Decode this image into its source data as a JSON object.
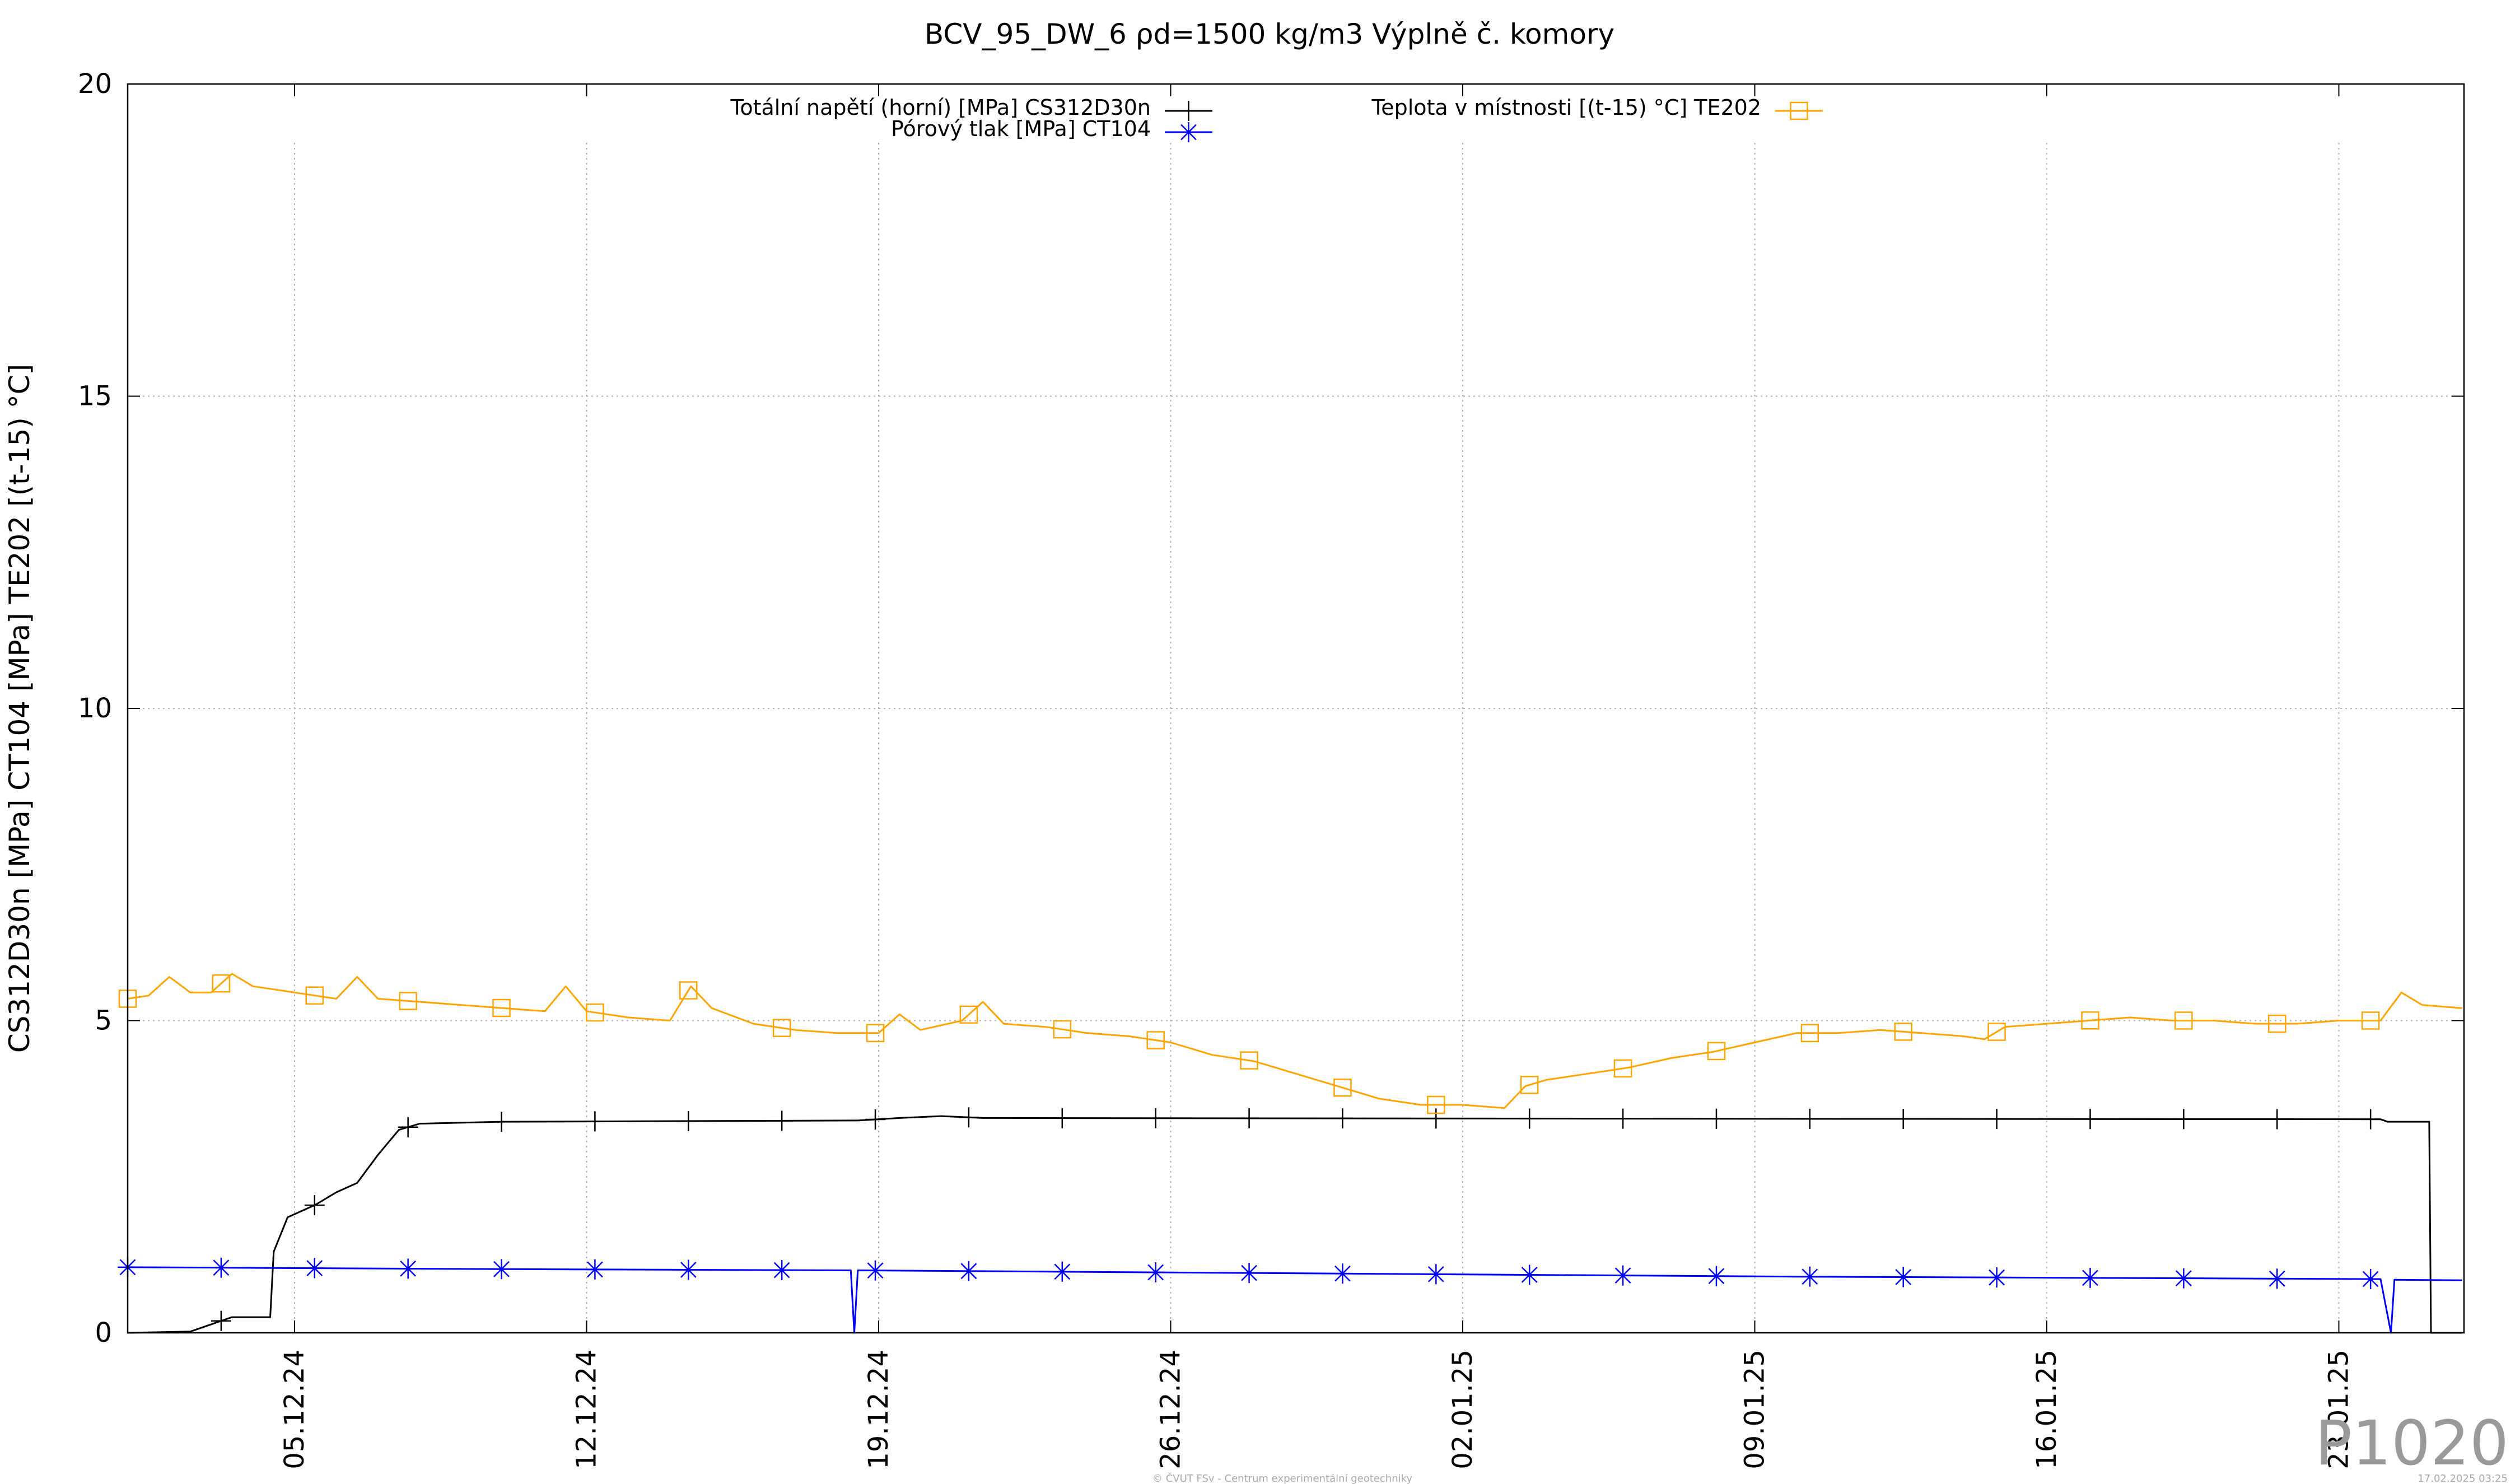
{
  "chart_data": {
    "type": "line",
    "title": "BCV_95_DW_6 ρd=1500 kg/m3 Výplně č. komory",
    "ylabel": "CS312D30n [MPa] CT104 [MPa] TE202 [(t-15) °C]",
    "xlabel": "",
    "ylim": [
      0,
      20
    ],
    "xlim": [
      "2024-12-01",
      "2025-01-25"
    ],
    "yticks": [
      "0",
      "5",
      "10",
      "15",
      "20"
    ],
    "xticks": [
      {
        "date": "2024-12-05",
        "label": "05.12.24"
      },
      {
        "date": "2024-12-12",
        "label": "12.12.24"
      },
      {
        "date": "2024-12-19",
        "label": "19.12.24"
      },
      {
        "date": "2024-12-26",
        "label": "26.12.24"
      },
      {
        "date": "2025-01-02",
        "label": "02.01.25"
      },
      {
        "date": "2025-01-09",
        "label": "09.01.25"
      },
      {
        "date": "2025-01-16",
        "label": "16.01.25"
      },
      {
        "date": "2025-01-23",
        "label": "23.01.25"
      }
    ],
    "grid": true,
    "legend_position": "top",
    "series": [
      {
        "name": "Totální napětí (horní) [MPa] CS312D30n",
        "color": "#000000",
        "marker": "plus",
        "points": [
          [
            "2024-12-01 00:00",
            0.0
          ],
          [
            "2024-12-02 12:00",
            0.02
          ],
          [
            "2024-12-03 12:00",
            0.25
          ],
          [
            "2024-12-04 10:00",
            0.25
          ],
          [
            "2024-12-04 12:00",
            1.3
          ],
          [
            "2024-12-04 20:00",
            1.85
          ],
          [
            "2024-12-05 12:00",
            2.05
          ],
          [
            "2024-12-06 00:00",
            2.25
          ],
          [
            "2024-12-06 12:00",
            2.4
          ],
          [
            "2024-12-07 00:00",
            2.85
          ],
          [
            "2024-12-07 12:00",
            3.25
          ],
          [
            "2024-12-08 00:00",
            3.35
          ],
          [
            "2024-12-10 00:00",
            3.38
          ],
          [
            "2024-12-18 12:00",
            3.4
          ],
          [
            "2024-12-19 12:00",
            3.44
          ],
          [
            "2024-12-20 12:00",
            3.47
          ],
          [
            "2024-12-21 12:00",
            3.44
          ],
          [
            "2025-01-05 00:00",
            3.43
          ],
          [
            "2025-01-24 00:00",
            3.42
          ],
          [
            "2025-01-24 04:00",
            3.38
          ],
          [
            "2025-01-25 04:00",
            3.38
          ],
          [
            "2025-01-25 05:00",
            0.0
          ],
          [
            "2025-01-25 23:00",
            0.0
          ]
        ]
      },
      {
        "name": "Pórový tlak [MPa] CT104",
        "color": "#0000ff",
        "marker": "star",
        "points": [
          [
            "2024-12-01 00:00",
            1.05
          ],
          [
            "2024-12-10 00:00",
            1.02
          ],
          [
            "2024-12-18 08:00",
            1.0
          ],
          [
            "2024-12-18 10:00",
            0.0
          ],
          [
            "2024-12-18 12:00",
            1.0
          ],
          [
            "2025-01-10 00:00",
            0.9
          ],
          [
            "2025-01-24 00:00",
            0.86
          ],
          [
            "2025-01-24 06:00",
            0.0
          ],
          [
            "2025-01-24 08:00",
            0.85
          ],
          [
            "2025-01-25 23:00",
            0.84
          ]
        ]
      },
      {
        "name": "Teplota v místnosti [(t-15) °C] TE202",
        "color": "#ffa500",
        "marker": "square",
        "points": [
          [
            "2024-12-01 00:00",
            5.35
          ],
          [
            "2024-12-01 12:00",
            5.4
          ],
          [
            "2024-12-02 00:00",
            5.7
          ],
          [
            "2024-12-02 12:00",
            5.45
          ],
          [
            "2024-12-03 00:00",
            5.45
          ],
          [
            "2024-12-03 12:00",
            5.75
          ],
          [
            "2024-12-04 00:00",
            5.55
          ],
          [
            "2024-12-05 00:00",
            5.45
          ],
          [
            "2024-12-06 00:00",
            5.35
          ],
          [
            "2024-12-06 12:00",
            5.7
          ],
          [
            "2024-12-07 00:00",
            5.35
          ],
          [
            "2024-12-08 00:00",
            5.3
          ],
          [
            "2024-12-09 00:00",
            5.25
          ],
          [
            "2024-12-10 00:00",
            5.2
          ],
          [
            "2024-12-11 00:00",
            5.15
          ],
          [
            "2024-12-11 12:00",
            5.55
          ],
          [
            "2024-12-12 00:00",
            5.15
          ],
          [
            "2024-12-13 00:00",
            5.05
          ],
          [
            "2024-12-14 00:00",
            5.0
          ],
          [
            "2024-12-14 12:00",
            5.55
          ],
          [
            "2024-12-15 00:00",
            5.2
          ],
          [
            "2024-12-16 00:00",
            4.95
          ],
          [
            "2024-12-17 00:00",
            4.85
          ],
          [
            "2024-12-18 00:00",
            4.8
          ],
          [
            "2024-12-19 00:00",
            4.8
          ],
          [
            "2024-12-19 12:00",
            5.1
          ],
          [
            "2024-12-20 00:00",
            4.85
          ],
          [
            "2024-12-21 00:00",
            5.0
          ],
          [
            "2024-12-21 12:00",
            5.3
          ],
          [
            "2024-12-22 00:00",
            4.95
          ],
          [
            "2024-12-23 00:00",
            4.9
          ],
          [
            "2024-12-24 00:00",
            4.8
          ],
          [
            "2024-12-25 00:00",
            4.75
          ],
          [
            "2024-12-26 00:00",
            4.65
          ],
          [
            "2024-12-27 00:00",
            4.45
          ],
          [
            "2024-12-28 00:00",
            4.35
          ],
          [
            "2024-12-29 00:00",
            4.15
          ],
          [
            "2024-12-30 00:00",
            3.95
          ],
          [
            "2024-12-31 00:00",
            3.75
          ],
          [
            "2025-01-01 00:00",
            3.65
          ],
          [
            "2025-01-02 00:00",
            3.65
          ],
          [
            "2025-01-03 00:00",
            3.6
          ],
          [
            "2025-01-03 12:00",
            3.95
          ],
          [
            "2025-01-04 00:00",
            4.05
          ],
          [
            "2025-01-05 00:00",
            4.15
          ],
          [
            "2025-01-06 00:00",
            4.25
          ],
          [
            "2025-01-07 00:00",
            4.4
          ],
          [
            "2025-01-08 00:00",
            4.5
          ],
          [
            "2025-01-09 00:00",
            4.65
          ],
          [
            "2025-01-10 00:00",
            4.8
          ],
          [
            "2025-01-11 00:00",
            4.8
          ],
          [
            "2025-01-12 00:00",
            4.85
          ],
          [
            "2025-01-13 00:00",
            4.8
          ],
          [
            "2025-01-14 00:00",
            4.75
          ],
          [
            "2025-01-14 12:00",
            4.7
          ],
          [
            "2025-01-15 00:00",
            4.9
          ],
          [
            "2025-01-16 00:00",
            4.95
          ],
          [
            "2025-01-17 00:00",
            5.0
          ],
          [
            "2025-01-18 00:00",
            5.05
          ],
          [
            "2025-01-19 00:00",
            5.0
          ],
          [
            "2025-01-20 00:00",
            5.0
          ],
          [
            "2025-01-21 00:00",
            4.95
          ],
          [
            "2025-01-22 00:00",
            4.95
          ],
          [
            "2025-01-23 00:00",
            5.0
          ],
          [
            "2025-01-24 00:00",
            5.0
          ],
          [
            "2025-01-24 12:00",
            5.45
          ],
          [
            "2025-01-25 00:00",
            5.25
          ],
          [
            "2025-01-25 23:00",
            5.2
          ]
        ]
      }
    ]
  },
  "watermark": "P1020",
  "footer_left": "© ČVUT FSv - Centrum experimentální geotechniky",
  "footer_right": "17.02.2025 03:25"
}
